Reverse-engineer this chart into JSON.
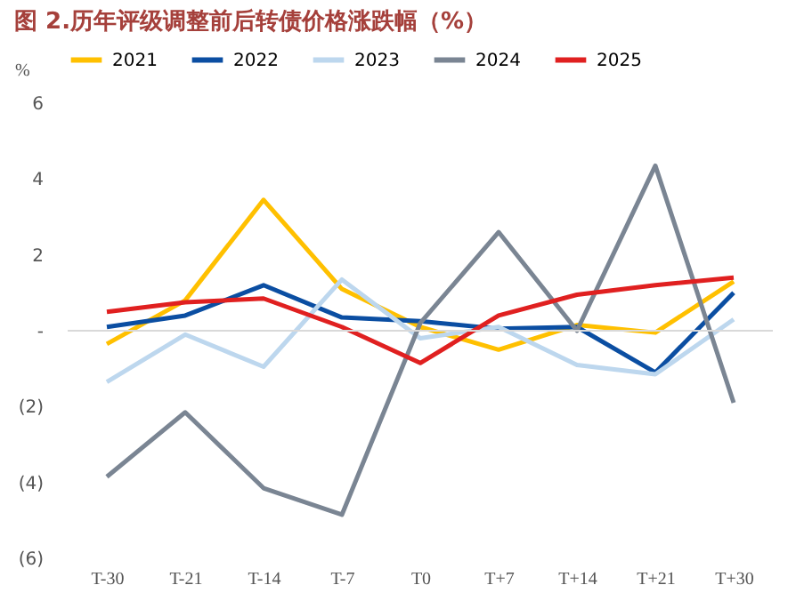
{
  "chart_data": {
    "type": "line",
    "title": "图 2.历年评级调整前后转债价格涨跌幅（%）",
    "ylabel": "%",
    "categories": [
      "T-30",
      "T-21",
      "T-14",
      "T-7",
      "T0",
      "T+7",
      "T+14",
      "T+21",
      "T+30"
    ],
    "series": [
      {
        "name": "2021",
        "color": "#ffc000",
        "values": [
          -0.35,
          0.8,
          3.45,
          1.1,
          0.1,
          -0.5,
          0.15,
          -0.05,
          1.3
        ]
      },
      {
        "name": "2022",
        "color": "#0b4ea2",
        "values": [
          0.1,
          0.4,
          1.2,
          0.35,
          0.25,
          0.05,
          0.1,
          -1.1,
          1.0
        ]
      },
      {
        "name": "2023",
        "color": "#bdd7ee",
        "values": [
          -1.35,
          -0.1,
          -0.95,
          1.35,
          -0.2,
          0.1,
          -0.9,
          -1.15,
          0.3
        ]
      },
      {
        "name": "2024",
        "color": "#7a8593",
        "values": [
          -3.85,
          -2.15,
          -4.15,
          -4.85,
          0.2,
          2.6,
          0,
          4.35,
          -1.9
        ]
      },
      {
        "name": "2025",
        "color": "#e02020",
        "values": [
          0.5,
          0.75,
          0.85,
          0.1,
          -0.85,
          0.4,
          0.95,
          1.2,
          1.4
        ]
      }
    ],
    "ylim": [
      -6,
      6
    ],
    "yticks": [
      6,
      4,
      2,
      {
        "value": 0,
        "label": "-"
      },
      {
        "value": -2,
        "label": "(2)"
      },
      {
        "value": -4,
        "label": "(4)"
      },
      {
        "value": -6,
        "label": "(6)"
      }
    ],
    "ref_lines": [
      {
        "axis": "y",
        "value": 0,
        "color": "#d9d9d9"
      }
    ],
    "grid": false,
    "legend": "top",
    "marker": "none",
    "line_style": "solid"
  }
}
